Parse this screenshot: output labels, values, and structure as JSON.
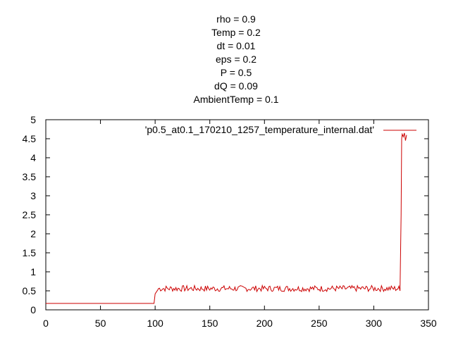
{
  "chart_data": {
    "type": "line",
    "title_lines": [
      "rho = 0.9",
      "Temp = 0.2",
      "dt = 0.01",
      "eps = 0.2",
      "P = 0.5",
      "dQ = 0.09",
      "AmbientTemp = 0.1"
    ],
    "xlabel": "",
    "ylabel": "",
    "xlim": [
      0,
      350
    ],
    "ylim": [
      0,
      5
    ],
    "xticks": [
      "0",
      "50",
      "100",
      "150",
      "200",
      "250",
      "300",
      "350"
    ],
    "yticks": [
      "0",
      "0.5",
      "1",
      "1.5",
      "2",
      "2.5",
      "3",
      "3.5",
      "4",
      "4.5",
      "5"
    ],
    "legend_position": "top-right",
    "series": [
      {
        "name": "'p0.5_at0.1_170210_1257_temperature_internal.dat'",
        "color": "#cc0000",
        "baseline": {
          "x_start": 0,
          "x_end": 99,
          "value": 0.17
        },
        "step": {
          "x": 100,
          "value_from": 0.17,
          "value_to": 0.42,
          "rise_end_x": 103,
          "rise_end_value": 0.55
        },
        "noisy_segment": {
          "x_start": 103,
          "x_end": 323,
          "mean": 0.56,
          "amplitude": 0.08
        },
        "jump": [
          {
            "x": 324,
            "y": 0.5
          },
          {
            "x": 325,
            "y": 2.5
          },
          {
            "x": 325.5,
            "y": 4.5
          },
          {
            "x": 326,
            "y": 4.62
          },
          {
            "x": 327,
            "y": 4.55
          },
          {
            "x": 328,
            "y": 4.65
          },
          {
            "x": 329,
            "y": 4.45
          },
          {
            "x": 330,
            "y": 4.6
          }
        ]
      }
    ]
  }
}
